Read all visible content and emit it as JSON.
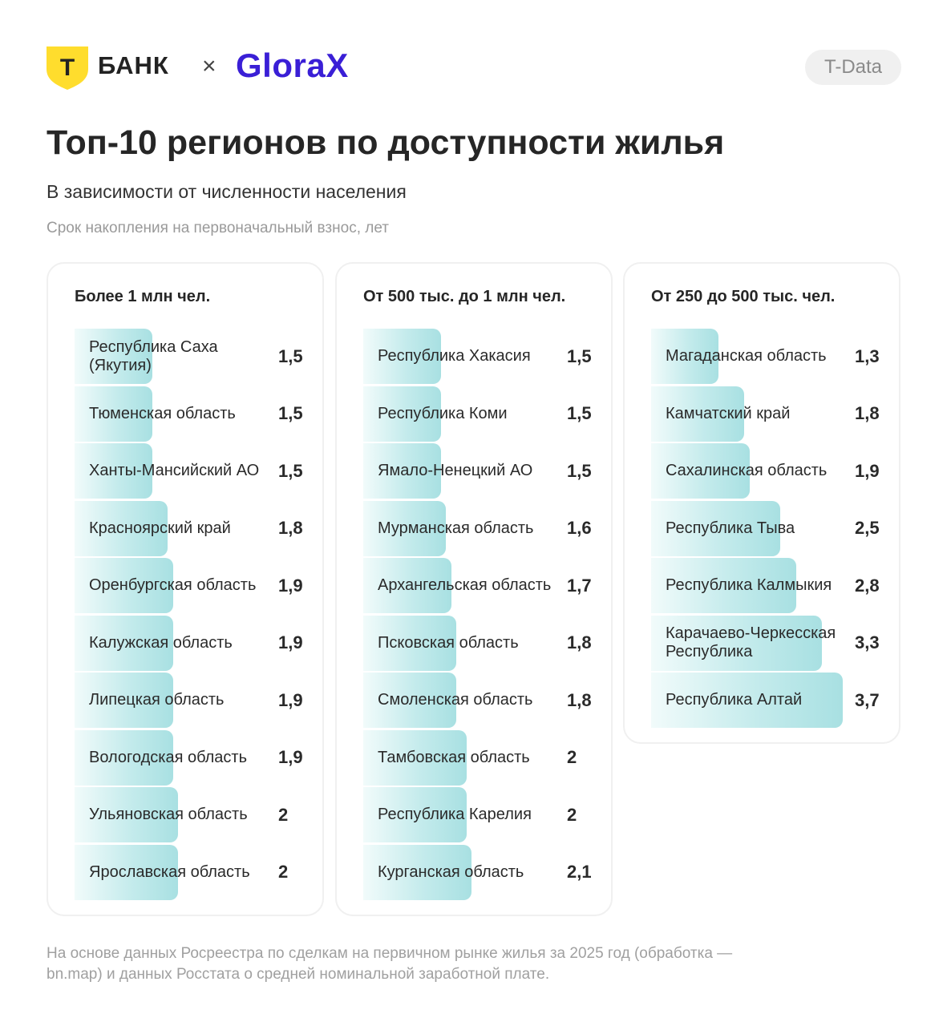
{
  "header": {
    "bank_letter": "Т",
    "bank_name": "БАНК",
    "separator": "×",
    "partner": "GloraX",
    "tag": "T-Data"
  },
  "title": "Топ-10 регионов по доступности жилья",
  "subtitle": "В зависимости от численности населения",
  "caption": "Срок накопления на первоначальный взнос, лет",
  "footnote": "На основе данных Росреестра по сделкам на первичном рынке жилья за 2025 год (обработка — bn.map) и данных Росстата о средней номинальной заработной плате.",
  "colors": {
    "bar": "#a8e0e2",
    "accent": "#3a1fd6",
    "logo_yellow": "#ffdd2d"
  },
  "chart_data": [
    {
      "type": "bar",
      "orientation": "horizontal",
      "title": "Более 1 млн чел.",
      "categories": [
        "Республика Саха (Якутия)",
        "Тюменская область",
        "Ханты-Мансийский АО",
        "Красноярский край",
        "Оренбургская область",
        "Калужская область",
        "Липецкая область",
        "Вологодская область",
        "Ульяновская область",
        "Ярославская область"
      ],
      "values": [
        1.5,
        1.5,
        1.5,
        1.8,
        1.9,
        1.9,
        1.9,
        1.9,
        2,
        2
      ],
      "labels": [
        "1,5",
        "1,5",
        "1,5",
        "1,8",
        "1,9",
        "1,9",
        "1,9",
        "1,9",
        "2",
        "2"
      ],
      "xlim": [
        0,
        4
      ]
    },
    {
      "type": "bar",
      "orientation": "horizontal",
      "title": "От 500 тыс. до 1 млн чел.",
      "categories": [
        "Республика Хакасия",
        "Республика Коми",
        "Ямало-Ненецкий АО",
        "Мурманская область",
        "Архангельская область",
        "Псковская область",
        "Смоленская область",
        "Тамбовская область",
        "Республика Карелия",
        "Курганская область"
      ],
      "values": [
        1.5,
        1.5,
        1.5,
        1.6,
        1.7,
        1.8,
        1.8,
        2,
        2,
        2.1
      ],
      "labels": [
        "1,5",
        "1,5",
        "1,5",
        "1,6",
        "1,7",
        "1,8",
        "1,8",
        "2",
        "2",
        "2,1"
      ],
      "xlim": [
        0,
        4
      ]
    },
    {
      "type": "bar",
      "orientation": "horizontal",
      "title": "От 250 до 500 тыс. чел.",
      "categories": [
        "Магаданская область",
        "Камчатский край",
        "Сахалинская область",
        "Республика Тыва",
        "Республика Калмыкия",
        "Карачаево-Черкесская Республика",
        "Республика Алтай"
      ],
      "values": [
        1.3,
        1.8,
        1.9,
        2.5,
        2.8,
        3.3,
        3.7
      ],
      "labels": [
        "1,3",
        "1,8",
        "1,9",
        "2,5",
        "2,8",
        "3,3",
        "3,7"
      ],
      "xlim": [
        0,
        4
      ]
    }
  ]
}
